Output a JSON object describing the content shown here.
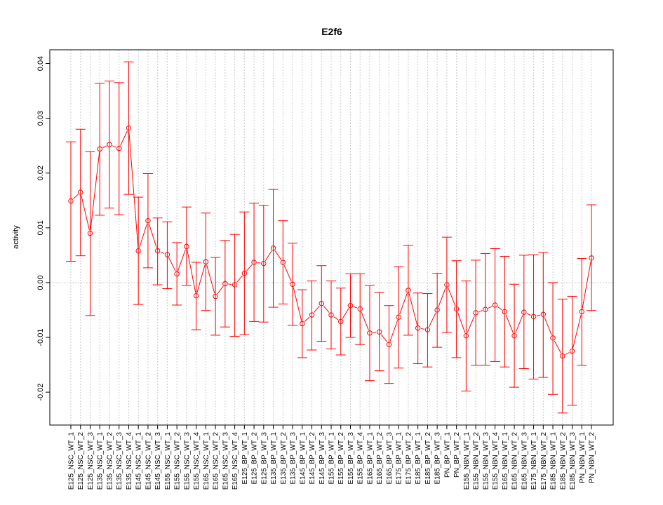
{
  "chart_data": {
    "type": "line",
    "title": "E2f6",
    "xlabel": "",
    "ylabel": "activity",
    "ylim": [
      -0.026,
      0.0425
    ],
    "yticks": [
      "-0.02",
      "-0.01",
      "0.00",
      "0.01",
      "0.02",
      "0.03",
      "0.04"
    ],
    "ytick_values": [
      -0.02,
      -0.01,
      0.0,
      0.01,
      0.02,
      0.03,
      0.04
    ],
    "grid": true,
    "reference_line": 0,
    "series_color": "#ff0000",
    "grid_color": "#cccccc",
    "categories": [
      "E125_NSC_WT_1",
      "E125_NSC_WT_2",
      "E125_NSC_WT_3",
      "E135_NSC_WT_1",
      "E135_NSC_WT_2",
      "E135_NSC_WT_3",
      "E135_NSC_WT_4",
      "E145_NSC_WT_1",
      "E145_NSC_WT_2",
      "E145_NSC_WT_3",
      "E155_NSC_WT_1",
      "E155_NSC_WT_2",
      "E155_NSC_WT_3",
      "E155_NSC_WT_4",
      "E165_NSC_WT_1",
      "E165_NSC_WT_2",
      "E165_NSC_WT_3",
      "E165_NSC_WT_4",
      "E125_BP_WT_1",
      "E125_BP_WT_2",
      "E125_BP_WT_3",
      "E135_BP_WT_1",
      "E135_BP_WT_2",
      "E135_BP_WT_3",
      "E145_BP_WT_1",
      "E145_BP_WT_2",
      "E145_BP_WT_3",
      "E155_BP_WT_1",
      "E155_BP_WT_2",
      "E155_BP_WT_3",
      "E155_BP_WT_4",
      "E165_BP_WT_1",
      "E165_BP_WT_2",
      "E165_BP_WT_3",
      "E175_BP_WT_1",
      "E175_BP_WT_2",
      "E185_BP_WT_1",
      "E185_BP_WT_2",
      "E185_BP_WT_3",
      "PN_BP_WT_1",
      "PN_BP_WT_2",
      "E155_NBN_WT_1",
      "E155_NBN_WT_2",
      "E155_NBN_WT_3",
      "E155_NBN_WT_4",
      "E165_NBN_WT_1",
      "E165_NBN_WT_2",
      "E165_NBN_WT_3",
      "E175_NBN_WT_1",
      "E175_NBN_WT_2",
      "E185_NBN_WT_1",
      "E185_NBN_WT_2",
      "E185_NBN_WT_3",
      "PN_NBN_WT_1",
      "PN_NBN_WT_2"
    ],
    "values": [
      0.0149,
      0.0165,
      0.009,
      0.0244,
      0.0252,
      0.0245,
      0.0282,
      0.0058,
      0.0113,
      0.0058,
      0.0051,
      0.0016,
      0.0066,
      -0.0024,
      0.0038,
      -0.0025,
      -0.0002,
      -0.0004,
      0.0017,
      0.0037,
      0.0035,
      0.0063,
      0.0037,
      -0.0003,
      -0.0075,
      -0.0059,
      -0.0038,
      -0.0059,
      -0.0071,
      -0.0042,
      -0.0048,
      -0.0092,
      -0.009,
      -0.0113,
      -0.0063,
      -0.0014,
      -0.0083,
      -0.0086,
      -0.005,
      -0.0004,
      -0.0048,
      -0.0097,
      -0.0055,
      -0.0049,
      -0.0041,
      -0.0053,
      -0.0097,
      -0.0054,
      -0.0062,
      -0.0058,
      -0.0101,
      -0.0134,
      -0.0125,
      -0.0053,
      0.0045
    ],
    "upper": [
      0.0257,
      0.028,
      0.0239,
      0.0364,
      0.0368,
      0.0365,
      0.0403,
      0.0156,
      0.0199,
      0.0118,
      0.0111,
      0.0073,
      0.0138,
      0.0037,
      0.0127,
      0.0046,
      0.0077,
      0.0088,
      0.0129,
      0.0145,
      0.0141,
      0.017,
      0.0113,
      0.0072,
      -0.0013,
      0.0003,
      0.0031,
      0.0003,
      -0.001,
      0.0016,
      0.0016,
      -0.0005,
      -0.0018,
      -0.0042,
      0.0029,
      0.0068,
      -0.0019,
      -0.002,
      0.0017,
      0.0083,
      0.004,
      0.0003,
      0.0041,
      0.0053,
      0.0062,
      0.0048,
      -0.0003,
      0.005,
      0.0051,
      0.0055,
      0.0,
      -0.003,
      -0.0025,
      0.0044,
      0.0142
    ],
    "lower": [
      0.0039,
      0.0049,
      -0.006,
      0.0123,
      0.0136,
      0.0124,
      0.0161,
      -0.004,
      0.0027,
      -0.0004,
      -0.0011,
      -0.0041,
      -0.0005,
      -0.0086,
      -0.0051,
      -0.0096,
      -0.0081,
      -0.0098,
      -0.0095,
      -0.0071,
      -0.0072,
      -0.0045,
      -0.0039,
      -0.0078,
      -0.0137,
      -0.0123,
      -0.0107,
      -0.0121,
      -0.0132,
      -0.01,
      -0.0113,
      -0.0179,
      -0.0161,
      -0.0184,
      -0.0156,
      -0.0096,
      -0.0148,
      -0.0154,
      -0.0118,
      -0.0091,
      -0.0137,
      -0.0198,
      -0.0151,
      -0.0151,
      -0.0144,
      -0.0154,
      -0.0191,
      -0.0157,
      -0.0176,
      -0.0173,
      -0.0204,
      -0.0238,
      -0.0224,
      -0.0151,
      -0.0051
    ]
  }
}
